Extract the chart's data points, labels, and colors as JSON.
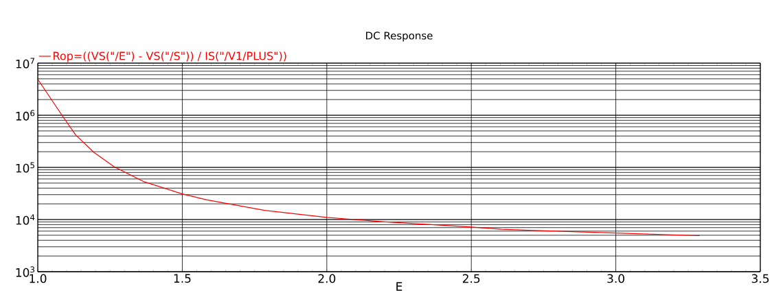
{
  "chart_data": {
    "type": "line",
    "title": "DC Response",
    "xlabel": "E",
    "x": [
      1.0,
      1.087,
      1.131,
      1.194,
      1.265,
      1.368,
      1.5,
      1.583,
      1.785,
      2.0,
      2.192,
      2.5,
      2.603,
      3.0,
      3.29
    ],
    "series": [
      {
        "name": "Rop=((VS(\"/E\") - VS(\"/S\")) / IS(\"/V1/PLUS\"))",
        "color": "#ff0000",
        "values": [
          4900000,
          940000,
          420000,
          195000,
          102000,
          53000,
          31000,
          24000,
          15000,
          11000,
          9100,
          7200,
          6500,
          5500,
          4900
        ]
      }
    ],
    "log": "y",
    "xlim": [
      1.0,
      3.5
    ],
    "ylim": [
      1000,
      10000000
    ],
    "xticks": [
      {
        "value": 1.0,
        "label": "1.0"
      },
      1.5,
      {
        "value": 2.0,
        "label": "2.0"
      },
      2.5,
      {
        "value": 3.0,
        "label": "3.0"
      },
      3.5
    ],
    "yticks": [
      {
        "value": 1000,
        "label": "10$^{3}$"
      },
      {
        "value": 10000,
        "label": "10$^{4}$"
      },
      {
        "value": 100000,
        "label": "10$^{5}$"
      },
      {
        "value": 1000000,
        "label": "10$^{6}$"
      },
      {
        "value": 10000000,
        "label": "10$^{7}$"
      }
    ],
    "grid": true,
    "legend": "top left"
  }
}
